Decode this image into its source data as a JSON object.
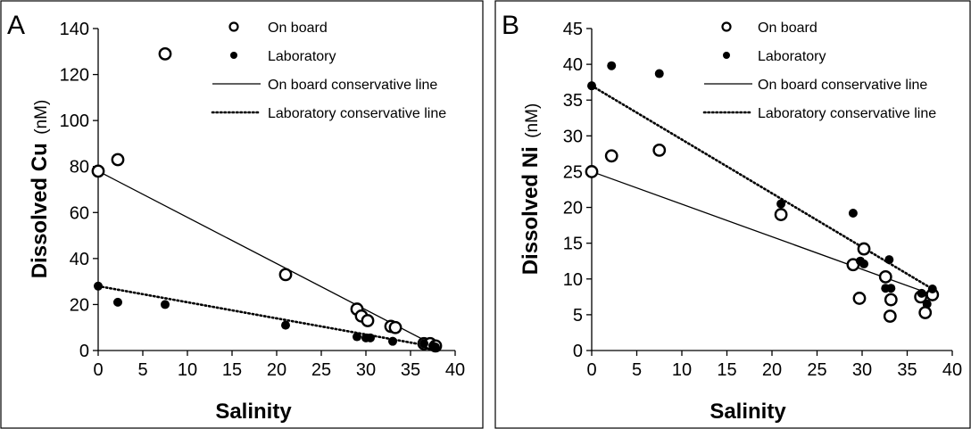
{
  "chart_data": [
    {
      "type": "scatter",
      "panel_label": "A",
      "xlabel": "Salinity",
      "ylabel_main": "Dissolved Cu",
      "ylabel_unit": "(nM)",
      "xlim": [
        0,
        40
      ],
      "ylim": [
        0,
        140
      ],
      "xticks": [
        0,
        5,
        10,
        15,
        20,
        25,
        30,
        35,
        40
      ],
      "yticks": [
        0,
        20,
        40,
        60,
        80,
        100,
        120,
        140
      ],
      "grid": false,
      "legend_position": "top-right",
      "series": [
        {
          "name": "On board",
          "style": "open-circle",
          "points": [
            [
              0,
              78
            ],
            [
              2.2,
              83
            ],
            [
              7.5,
              129
            ],
            [
              21,
              33
            ],
            [
              29,
              18
            ],
            [
              29.5,
              15
            ],
            [
              30.2,
              13
            ],
            [
              32.8,
              10.5
            ],
            [
              33.3,
              10
            ],
            [
              36.5,
              3
            ],
            [
              37.2,
              3
            ],
            [
              37.8,
              2
            ]
          ]
        },
        {
          "name": "Laboratory",
          "style": "filled-circle",
          "points": [
            [
              0,
              28
            ],
            [
              2.2,
              21
            ],
            [
              7.5,
              20
            ],
            [
              21,
              11
            ],
            [
              29,
              6
            ],
            [
              30,
              5.5
            ],
            [
              30.5,
              5.5
            ],
            [
              33,
              4
            ],
            [
              36.5,
              3
            ],
            [
              37.5,
              2
            ],
            [
              37.8,
              1.5
            ]
          ]
        },
        {
          "name": "On board conservative line",
          "style": "solid-line",
          "points": [
            [
              0,
              78
            ],
            [
              37.8,
              2
            ]
          ]
        },
        {
          "name": "Laboratory conservative line",
          "style": "dotted-line",
          "points": [
            [
              0,
              28
            ],
            [
              37.8,
              1.5
            ]
          ]
        }
      ]
    },
    {
      "type": "scatter",
      "panel_label": "B",
      "xlabel": "Salinity",
      "ylabel_main": "Dissolved Ni",
      "ylabel_unit": "(nM)",
      "xlim": [
        0,
        40
      ],
      "ylim": [
        0,
        45
      ],
      "xticks": [
        0,
        5,
        10,
        15,
        20,
        25,
        30,
        35,
        40
      ],
      "yticks": [
        0,
        5,
        10,
        15,
        20,
        25,
        30,
        35,
        40,
        45
      ],
      "grid": false,
      "legend_position": "top-right",
      "series": [
        {
          "name": "On board",
          "style": "open-circle",
          "points": [
            [
              0,
              25
            ],
            [
              2.2,
              27.2
            ],
            [
              7.5,
              28
            ],
            [
              21,
              19
            ],
            [
              29,
              12
            ],
            [
              29.7,
              7.3
            ],
            [
              30.2,
              14.2
            ],
            [
              32.6,
              10.3
            ],
            [
              33.1,
              4.8
            ],
            [
              33.2,
              7.1
            ],
            [
              36.5,
              7.5
            ],
            [
              37,
              5.3
            ],
            [
              37.8,
              7.8
            ]
          ]
        },
        {
          "name": "Laboratory",
          "style": "filled-circle",
          "points": [
            [
              0,
              37
            ],
            [
              2.2,
              39.8
            ],
            [
              7.5,
              38.7
            ],
            [
              21,
              20.5
            ],
            [
              29,
              19.2
            ],
            [
              29.8,
              12.5
            ],
            [
              30.2,
              12.1
            ],
            [
              32.6,
              8.7
            ],
            [
              33,
              12.7
            ],
            [
              33.2,
              8.7
            ],
            [
              36.6,
              8
            ],
            [
              37.2,
              6.5
            ],
            [
              37.8,
              8.6
            ]
          ]
        },
        {
          "name": "On board conservative line",
          "style": "solid-line",
          "points": [
            [
              0,
              25
            ],
            [
              37.8,
              7.8
            ]
          ]
        },
        {
          "name": "Laboratory conservative line",
          "style": "dotted-line",
          "points": [
            [
              0,
              37
            ],
            [
              37.8,
              8.6
            ]
          ]
        }
      ]
    }
  ]
}
